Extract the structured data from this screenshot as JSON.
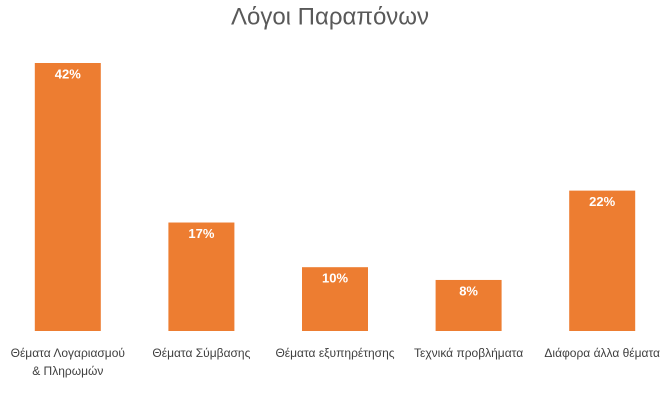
{
  "chart_data": {
    "type": "bar",
    "title": "Λόγοι Παραπόνων",
    "categories": [
      "Θέματα Λογαριασμού & Πληρωμών",
      "Θέματα Σύμβασης",
      "Θέματα εξυπηρέτησης",
      "Τεχνικά προβλήματα",
      "Διάφορα άλλα θέματα"
    ],
    "values": [
      42,
      17,
      10,
      8,
      22
    ],
    "value_labels": [
      "42%",
      "17%",
      "10%",
      "8%",
      "22%"
    ],
    "color": "#ed7d31"
  }
}
